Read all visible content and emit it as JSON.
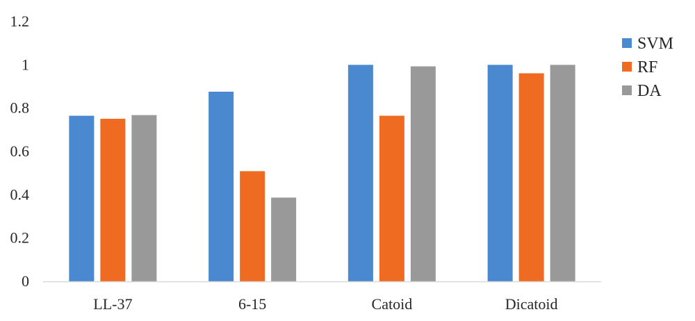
{
  "chart_data": {
    "type": "bar",
    "categories": [
      "LL-37",
      "6-15",
      "Catoid",
      "Dicatoid"
    ],
    "series": [
      {
        "name": "SVM",
        "color": "#4A89D0",
        "values": [
          0.765,
          0.876,
          1.0,
          1.0
        ]
      },
      {
        "name": "RF",
        "color": "#EF6B21",
        "values": [
          0.751,
          0.509,
          0.765,
          0.961
        ]
      },
      {
        "name": "DA",
        "color": "#999999",
        "values": [
          0.768,
          0.387,
          0.993,
          1.0
        ]
      }
    ],
    "ylim": [
      0,
      1.2
    ],
    "yticks": [
      "0",
      "0.2",
      "0.4",
      "0.6",
      "0.8",
      "1",
      "1.2"
    ],
    "title": "",
    "xlabel": "",
    "ylabel": "",
    "grid": false,
    "legend": "right"
  }
}
